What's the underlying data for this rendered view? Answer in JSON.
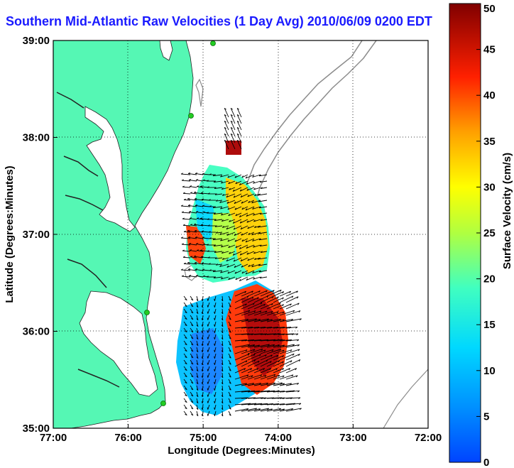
{
  "title": "Southern Mid-Atlantic Raw Velocities (1 Day Avg) 2010/06/09 0200 EDT",
  "xlabel": "Longitude (Degrees:Minutes)",
  "ylabel": "Latitude (Degrees:Minutes)",
  "x_ticks": [
    "77:00",
    "76:00",
    "75:00",
    "74:00",
    "73:00",
    "72:00"
  ],
  "y_ticks": [
    "39:00",
    "38:00",
    "37:00",
    "36:00",
    "35:00"
  ],
  "colorbar": {
    "label": "Surface Velocity (cm/s)",
    "ticks": [
      "50",
      "45",
      "40",
      "35",
      "30",
      "25",
      "20",
      "15",
      "10",
      "5",
      "0"
    ]
  },
  "colors": {
    "land": "#55f7b4",
    "title": "#1a1aff",
    "contour": "#8c8c8c",
    "station": "#22cc22"
  },
  "chart_data": {
    "type": "heatmap",
    "xlim": [
      -77,
      -72
    ],
    "ylim": [
      35,
      39
    ],
    "clim": [
      0,
      50
    ],
    "colormap": "jet",
    "grid": true,
    "colorbar_position": "right"
  }
}
